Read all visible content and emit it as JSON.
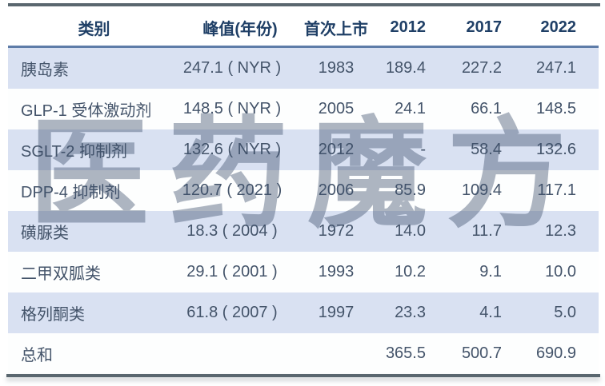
{
  "watermark": "医药魔方",
  "colors": {
    "stripe_blue": "#d9e1f2",
    "header_text": "#1f3f66",
    "body_text": "#44546a",
    "outer_border": "#5a676f",
    "header_rule": "#5e7ca8",
    "watermark": "rgba(62,82,110,0.42)"
  },
  "chart_data": {
    "type": "table",
    "columns": [
      "类别",
      "峰值(年份)",
      "首次上市",
      "2012",
      "2017",
      "2022"
    ],
    "rows": [
      [
        "胰岛素",
        "247.1 ( NYR )",
        "1983",
        "189.4",
        "227.2",
        "247.1"
      ],
      [
        "GLP-1 受体激动剂",
        "148.5 ( NYR )",
        "2005",
        "24.1",
        "66.1",
        "148.5"
      ],
      [
        "SGLT-2 抑制剂",
        "132.6 ( NYR )",
        "2012",
        "-",
        "58.4",
        "132.6"
      ],
      [
        "DPP-4 抑制剂",
        "120.7 ( 2021 )",
        "2006",
        "85.9",
        "109.4",
        "117.1"
      ],
      [
        "磺脲类",
        "18.3 ( 2004 )",
        "1972",
        "14.0",
        "11.7",
        "12.3"
      ],
      [
        "二甲双胍类",
        "29.1 ( 2001 )",
        "1993",
        "10.2",
        "9.1",
        "10.0"
      ],
      [
        "格列酮类",
        "61.8 ( 2007 )",
        "1997",
        "23.3",
        "4.1",
        "5.0"
      ],
      [
        "总和",
        "",
        "",
        "365.5",
        "500.7",
        "690.9"
      ]
    ]
  }
}
